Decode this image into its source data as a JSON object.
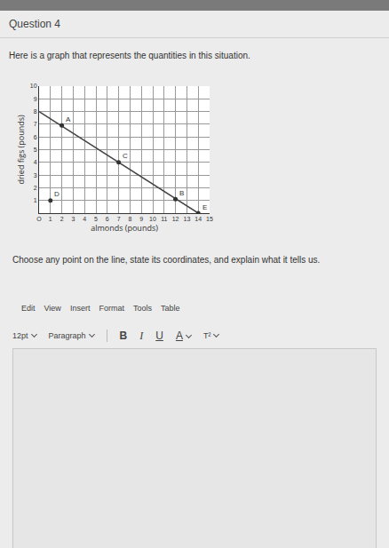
{
  "header": {
    "title": "Question 4"
  },
  "prompt": "Here is a graph that represents the quantities in this situation.",
  "question": "Choose any point on the line, state its coordinates, and explain what it tells us.",
  "editor": {
    "menu": [
      "Edit",
      "View",
      "Insert",
      "Format",
      "Tools",
      "Table"
    ],
    "toolbar": [
      "12pt",
      "Paragraph",
      "B",
      "I",
      "U",
      "A",
      "T²"
    ]
  },
  "chart_data": {
    "type": "line",
    "x_label": "almonds (pounds)",
    "y_label": "dried figs (pounds)",
    "xlim": [
      0,
      15
    ],
    "xticks": [
      {
        "value": 0,
        "label": "O"
      },
      1,
      2,
      3,
      4,
      5,
      6,
      7,
      8,
      9,
      10,
      11,
      12,
      13,
      14,
      15
    ],
    "ylim": [
      0,
      10
    ],
    "yticks": [
      1,
      2,
      3,
      4,
      5,
      6,
      7,
      8,
      9,
      10
    ],
    "grid": true,
    "series": [
      {
        "type": "line",
        "color": "#444444",
        "line_style": "solid",
        "x": [
          0,
          14
        ],
        "values": [
          8,
          0
        ]
      },
      {
        "type": "scatter",
        "color": "#333333",
        "marker": "circle",
        "x": [
          2,
          7,
          12,
          1,
          14
        ],
        "values": [
          6.9,
          4,
          1.1,
          1,
          0
        ]
      }
    ],
    "annotations": [
      {
        "text": "A",
        "x": 2,
        "y": 6.9
      },
      {
        "text": "C",
        "x": 7,
        "y": 4
      },
      {
        "text": "B",
        "x": 12,
        "y": 1.1
      },
      {
        "text": "D",
        "x": 1,
        "y": 1
      },
      {
        "text": "E",
        "x": 14,
        "y": 0
      }
    ]
  }
}
